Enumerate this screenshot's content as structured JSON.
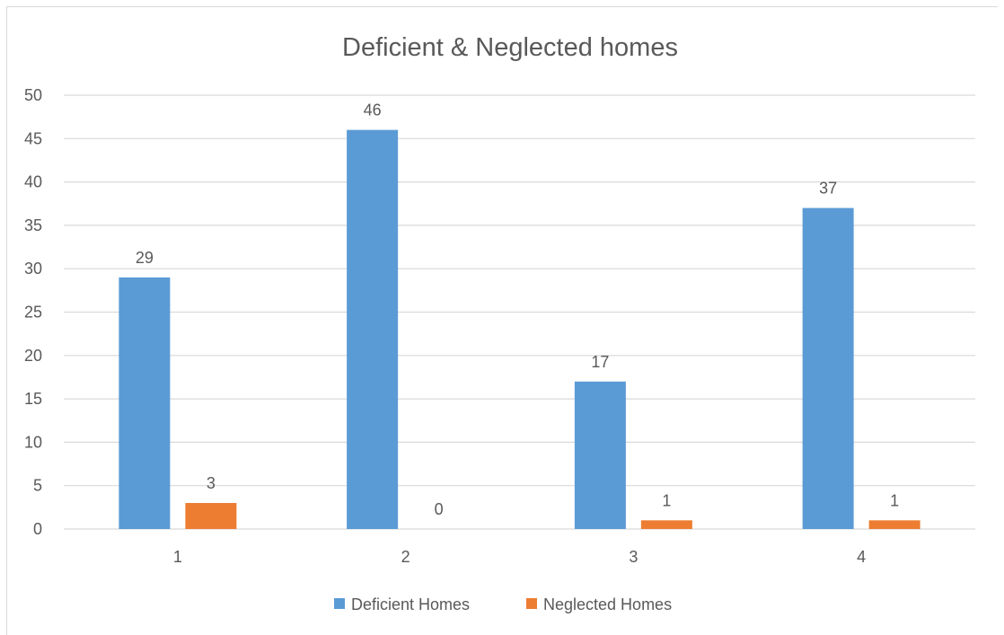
{
  "chart_data": {
    "type": "bar",
    "title": "Deficient & Neglected homes",
    "categories": [
      "1",
      "2",
      "3",
      "4"
    ],
    "series": [
      {
        "name": "Deficient Homes",
        "values": [
          29,
          46,
          17,
          37
        ],
        "color": "#5b9bd5"
      },
      {
        "name": "Neglected Homes",
        "values": [
          3,
          0,
          1,
          1
        ],
        "color": "#ed7d31"
      }
    ],
    "ylim": [
      0,
      50
    ],
    "ytick_step": 5,
    "yticks": [
      "0",
      "5",
      "10",
      "15",
      "20",
      "25",
      "30",
      "35",
      "40",
      "45",
      "50"
    ],
    "grid": true,
    "data_labels": true,
    "legend_position": "bottom",
    "colors": {
      "gridline": "#d9d9d9",
      "text": "#595959",
      "title": "#595959"
    }
  }
}
